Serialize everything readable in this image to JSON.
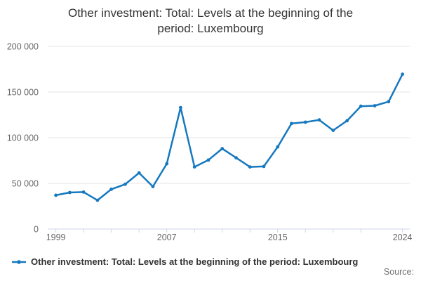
{
  "title": {
    "line1": "Other investment: Total: Levels at the beginning of the",
    "line2": "period: Luxembourg"
  },
  "legend": {
    "label": "Other investment: Total: Levels at the beginning of the period: Luxembourg"
  },
  "source_note": "Source:",
  "chart_data": {
    "type": "line",
    "title": "Other investment: Total: Levels at the beginning of the period: Luxembourg",
    "series_name": "Other investment: Total: Levels at the beginning of the period: Luxembourg",
    "x": [
      1999,
      2000,
      2001,
      2002,
      2003,
      2004,
      2005,
      2006,
      2007,
      2008,
      2009,
      2010,
      2011,
      2012,
      2013,
      2014,
      2015,
      2016,
      2017,
      2018,
      2019,
      2020,
      2021,
      2022,
      2023,
      2024
    ],
    "values": [
      37000,
      40000,
      40500,
      31500,
      43500,
      49000,
      61500,
      46500,
      71500,
      133000,
      68000,
      75500,
      88000,
      78000,
      68000,
      68500,
      90000,
      115500,
      117000,
      119500,
      108000,
      118500,
      134500,
      135000,
      139500,
      169500
    ],
    "xlabel": "",
    "ylabel": "",
    "ylim": [
      0,
      200000
    ],
    "xlim": [
      1998.4,
      2024.5
    ],
    "grid": "horizontal-only",
    "legend_position": "bottom-left",
    "y_axis": {
      "ticks": [
        {
          "value": 0,
          "label": "0"
        },
        {
          "value": 50000,
          "label": "50 000"
        },
        {
          "value": 100000,
          "label": "100 000"
        },
        {
          "value": 150000,
          "label": "150 000"
        },
        {
          "value": 200000,
          "label": "200 000"
        }
      ]
    },
    "x_axis": {
      "tick_years": [
        1999,
        2001,
        2003,
        2005,
        2007,
        2009,
        2011,
        2013,
        2015,
        2017,
        2019,
        2021,
        2024
      ],
      "labeled_ticks": [
        {
          "year": 1999,
          "label": "1999"
        },
        {
          "year": 2007,
          "label": "2007"
        },
        {
          "year": 2015,
          "label": "2015"
        },
        {
          "year": 2024,
          "label": "2024"
        }
      ]
    },
    "colors": {
      "series": "#1678be",
      "grid": "#e6e6e6",
      "axis_line": "#ccd6eb",
      "axis_text": "#666666",
      "title_text": "#333333",
      "legend_text": "#333333",
      "source_text": "#707070",
      "background": "#ffffff"
    }
  }
}
